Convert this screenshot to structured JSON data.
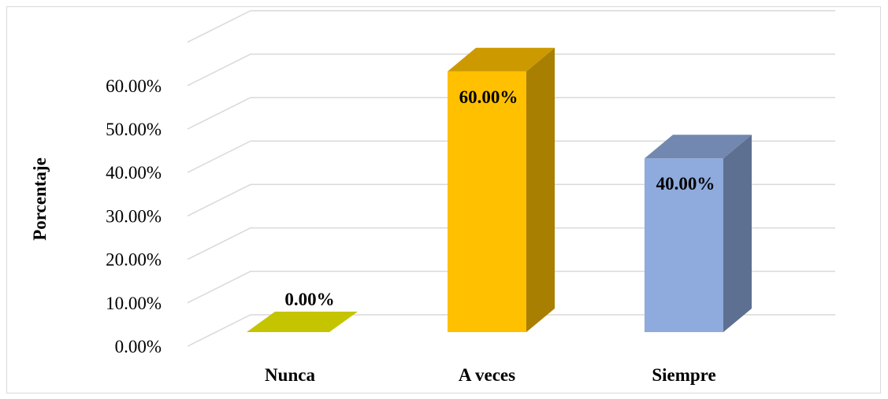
{
  "chart_data": {
    "type": "bar",
    "style": "3d-column",
    "categories": [
      "Nunca",
      "A veces",
      "Siempre"
    ],
    "values": [
      0.0,
      60.0,
      40.0
    ],
    "data_labels": [
      "0.00%",
      "60.00%",
      "40.00%"
    ],
    "bar_colors": [
      "#c4c400",
      "#ffc000",
      "#8faadc"
    ],
    "title": "",
    "xlabel": "",
    "ylabel": "Porcentaje",
    "ylim": [
      0,
      60
    ],
    "y_ticks": [
      0,
      10,
      20,
      30,
      40,
      50,
      60
    ],
    "y_tick_labels": [
      "0.00%",
      "10.00%",
      "20.00%",
      "30.00%",
      "40.00%",
      "50.00%",
      "60.00%"
    ],
    "grid": true,
    "legend": false
  }
}
